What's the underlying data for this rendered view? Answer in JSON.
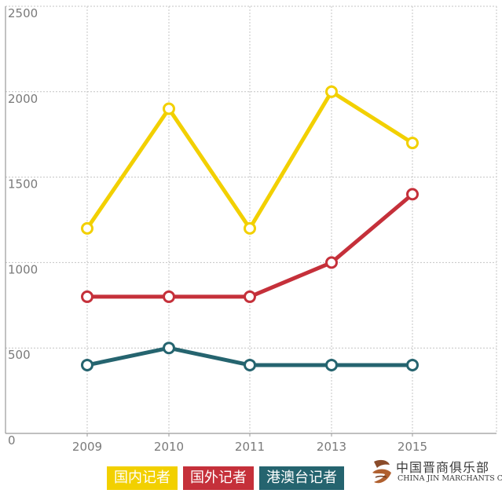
{
  "chart_data": {
    "type": "line",
    "title": "",
    "xlabel": "",
    "ylabel": "",
    "categories": [
      "2009",
      "2010",
      "2011",
      "2013",
      "2015"
    ],
    "yticks": [
      "0",
      "500",
      "1000",
      "1500",
      "2000",
      "2500"
    ],
    "ylim": [
      0,
      2500
    ],
    "grid": "dotted, both axes",
    "legend_position": "bottom",
    "series": [
      {
        "name": "国内记者",
        "color": "#f2d000",
        "values": [
          1200,
          1900,
          1200,
          2000,
          1700
        ]
      },
      {
        "name": "国外记者",
        "color": "#c5303a",
        "values": [
          800,
          800,
          800,
          1000,
          1400
        ]
      },
      {
        "name": "港澳台记者",
        "color": "#25646f",
        "values": [
          400,
          500,
          400,
          400,
          400
        ]
      }
    ]
  },
  "watermark": {
    "name_cn": "中国晋商俱乐部",
    "name_en": "CHINA JIN MARCHANTS CLUB"
  }
}
